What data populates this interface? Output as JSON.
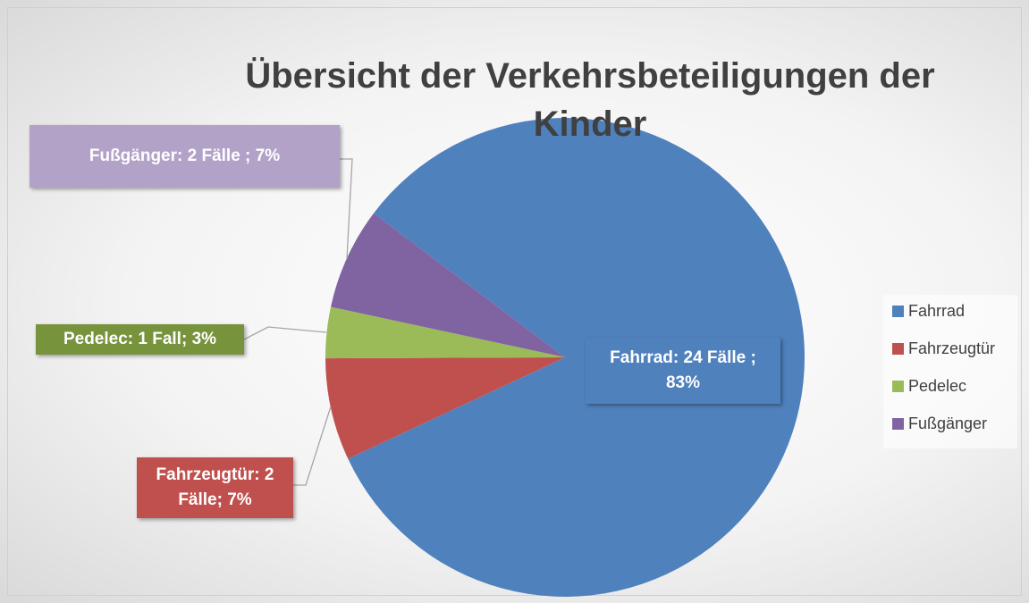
{
  "chart_data": {
    "type": "pie",
    "title": "Übersicht der Verkehrsbeteiligungen der Kinder",
    "categories": [
      "Fahrrad",
      "Fahrzeugtür",
      "Pedelec",
      "Fußgänger"
    ],
    "values": [
      24,
      2,
      1,
      2
    ],
    "value_labels": [
      "Fahrrad:  24 Fälle ; 83%",
      "Fahrzeugtür: 2 Fälle; 7%",
      "Pedelec:  1 Fall; 3%",
      "Fußgänger:  2 Fälle ; 7%"
    ],
    "colors": [
      "#4f81bd",
      "#c0504d",
      "#9bbb59",
      "#8064a2"
    ],
    "legend": "right"
  }
}
